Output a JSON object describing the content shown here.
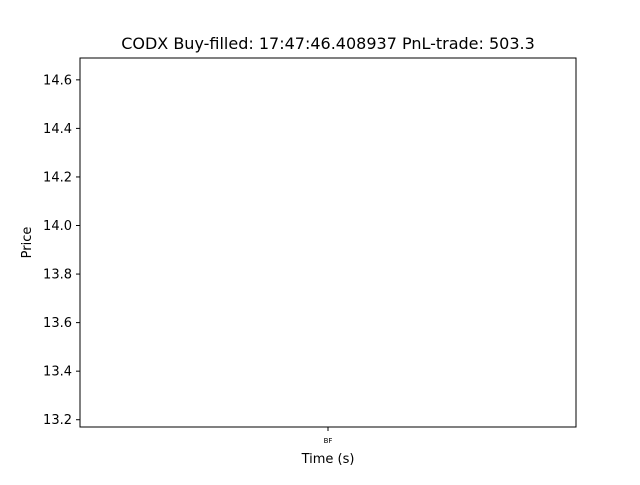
{
  "chart_data": {
    "type": "line",
    "title": "CODX  Buy-filled:  17:47:46.408937  PnL-trade:  503.3",
    "xlabel": "Time (s)",
    "ylabel": "Price",
    "ylim": [
      13.17,
      14.69
    ],
    "yticks": [
      13.2,
      13.4,
      13.6,
      13.8,
      14.0,
      14.2,
      14.4,
      14.6
    ],
    "ytick_labels": [
      "13.2",
      "13.4",
      "13.6",
      "13.8",
      "14.0",
      "14.2",
      "14.4",
      "14.6"
    ],
    "xticks": [
      0
    ],
    "xtick_labels": [
      "BF"
    ],
    "xlim": [
      -1,
      1
    ],
    "grid": false,
    "series": []
  }
}
